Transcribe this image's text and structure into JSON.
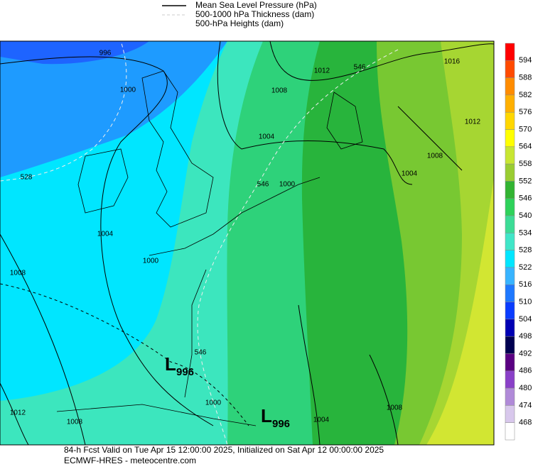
{
  "legend": {
    "items": [
      "Mean Sea Level Pressure (hPa)",
      "500-1000 hPa Thickness (dam)",
      "500-hPa Heights (dam)"
    ]
  },
  "colorbar": {
    "labels": [
      594,
      588,
      582,
      576,
      570,
      564,
      558,
      552,
      546,
      540,
      534,
      528,
      522,
      516,
      510,
      504,
      498,
      492,
      486,
      480,
      474,
      468
    ],
    "colors": [
      "#ff0000",
      "#ff4a00",
      "#ff8c00",
      "#ffb000",
      "#ffd700",
      "#ffff00",
      "#c8e632",
      "#9acd32",
      "#32b432",
      "#2ed25a",
      "#3cdc96",
      "#40e6c8",
      "#00e6ff",
      "#38b4ff",
      "#1e78ff",
      "#0a3cff",
      "#0000b4",
      "#000050",
      "#5a0082",
      "#8a40c8",
      "#b08ad8",
      "#d8c8ec",
      "#ffffff"
    ]
  },
  "contour_labels": [
    "996",
    "1000",
    "1008",
    "1012",
    "546",
    "1016",
    "1012",
    "1004",
    "1008",
    "1004",
    "528",
    "546",
    "1000",
    "1004",
    "1000",
    "1008",
    "546",
    "1012",
    "1008",
    "1000",
    "1004",
    "1008"
  ],
  "lows": [
    {
      "symbol": "L",
      "value": "996"
    },
    {
      "symbol": "L",
      "value": "996"
    }
  ],
  "footer": {
    "line1": "84-h Fcst Valid on Tue Apr 15 12:00:00 2025, Initialized on Sat Apr 12 00:00:00 2025",
    "line2": "ECMWF-HRES - meteocentre.com"
  }
}
